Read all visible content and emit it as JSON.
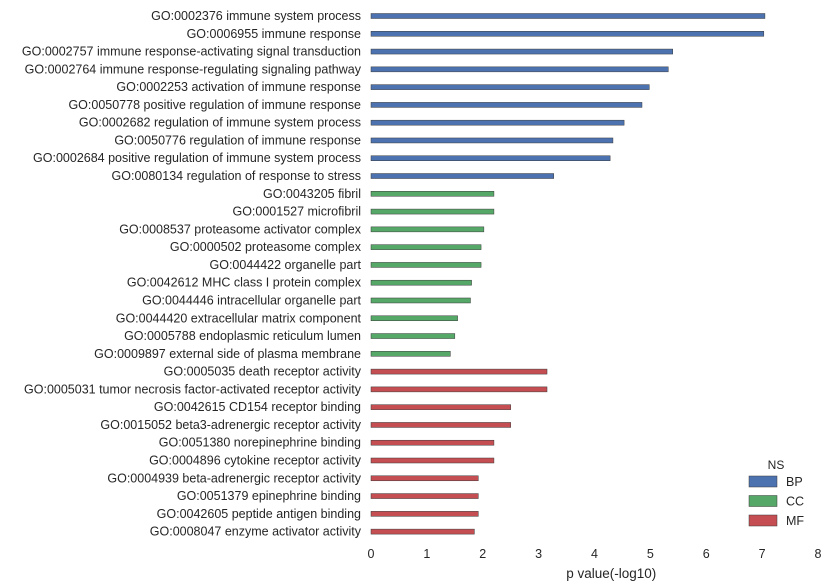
{
  "chart_data": {
    "type": "bar",
    "orientation": "horizontal",
    "xlabel": "p value(-log10)",
    "xlim": [
      0,
      8
    ],
    "xticks": [
      "0",
      "1",
      "2",
      "3",
      "4",
      "5",
      "6",
      "7",
      "8"
    ],
    "grid": false,
    "legend": {
      "title": "NS",
      "placement": "bottom-right",
      "entries": [
        {
          "name": "BP",
          "color": "#4c72b0"
        },
        {
          "name": "CC",
          "color": "#55a868"
        },
        {
          "name": "MF",
          "color": "#c44e52"
        }
      ]
    },
    "bars": [
      {
        "label": "GO:0002376 immune system process",
        "value": 7.05,
        "group": "BP"
      },
      {
        "label": "GO:0006955 immune response",
        "value": 7.03,
        "group": "BP"
      },
      {
        "label": "GO:0002757 immune response-activating signal transduction",
        "value": 5.4,
        "group": "BP"
      },
      {
        "label": "GO:0002764 immune response-regulating signaling pathway",
        "value": 5.32,
        "group": "BP"
      },
      {
        "label": "GO:0002253 activation of immune response",
        "value": 4.98,
        "group": "BP"
      },
      {
        "label": "GO:0050778 positive regulation of immune response",
        "value": 4.85,
        "group": "BP"
      },
      {
        "label": "GO:0002682 regulation of immune system process",
        "value": 4.53,
        "group": "BP"
      },
      {
        "label": "GO:0050776 regulation of immune response",
        "value": 4.33,
        "group": "BP"
      },
      {
        "label": "GO:0002684 positive regulation of immune system process",
        "value": 4.28,
        "group": "BP"
      },
      {
        "label": "GO:0080134 regulation of response to stress",
        "value": 3.27,
        "group": "BP"
      },
      {
        "label": "GO:0043205 fibril",
        "value": 2.2,
        "group": "CC"
      },
      {
        "label": "GO:0001527 microfibril",
        "value": 2.2,
        "group": "CC"
      },
      {
        "label": "GO:0008537 proteasome activator complex",
        "value": 2.02,
        "group": "CC"
      },
      {
        "label": "GO:0000502 proteasome complex",
        "value": 1.97,
        "group": "CC"
      },
      {
        "label": "GO:0044422 organelle part",
        "value": 1.97,
        "group": "CC"
      },
      {
        "label": "GO:0042612 MHC class I protein complex",
        "value": 1.8,
        "group": "CC"
      },
      {
        "label": "GO:0044446 intracellular organelle part",
        "value": 1.78,
        "group": "CC"
      },
      {
        "label": "GO:0044420 extracellular matrix component",
        "value": 1.55,
        "group": "CC"
      },
      {
        "label": "GO:0005788 endoplasmic reticulum lumen",
        "value": 1.5,
        "group": "CC"
      },
      {
        "label": "GO:0009897 external side of plasma membrane",
        "value": 1.42,
        "group": "CC"
      },
      {
        "label": "GO:0005035 death receptor activity",
        "value": 3.15,
        "group": "MF"
      },
      {
        "label": "GO:0005031 tumor necrosis factor-activated receptor activity",
        "value": 3.15,
        "group": "MF"
      },
      {
        "label": "GO:0042615 CD154 receptor binding",
        "value": 2.5,
        "group": "MF"
      },
      {
        "label": "GO:0015052 beta3-adrenergic receptor activity",
        "value": 2.5,
        "group": "MF"
      },
      {
        "label": "GO:0051380 norepinephrine binding",
        "value": 2.2,
        "group": "MF"
      },
      {
        "label": "GO:0004896 cytokine receptor activity",
        "value": 2.2,
        "group": "MF"
      },
      {
        "label": "GO:0004939 beta-adrenergic receptor activity",
        "value": 1.92,
        "group": "MF"
      },
      {
        "label": "GO:0051379 epinephrine binding",
        "value": 1.92,
        "group": "MF"
      },
      {
        "label": "GO:0042605 peptide antigen binding",
        "value": 1.92,
        "group": "MF"
      },
      {
        "label": "GO:0008047 enzyme activator activity",
        "value": 1.85,
        "group": "MF"
      }
    ]
  }
}
